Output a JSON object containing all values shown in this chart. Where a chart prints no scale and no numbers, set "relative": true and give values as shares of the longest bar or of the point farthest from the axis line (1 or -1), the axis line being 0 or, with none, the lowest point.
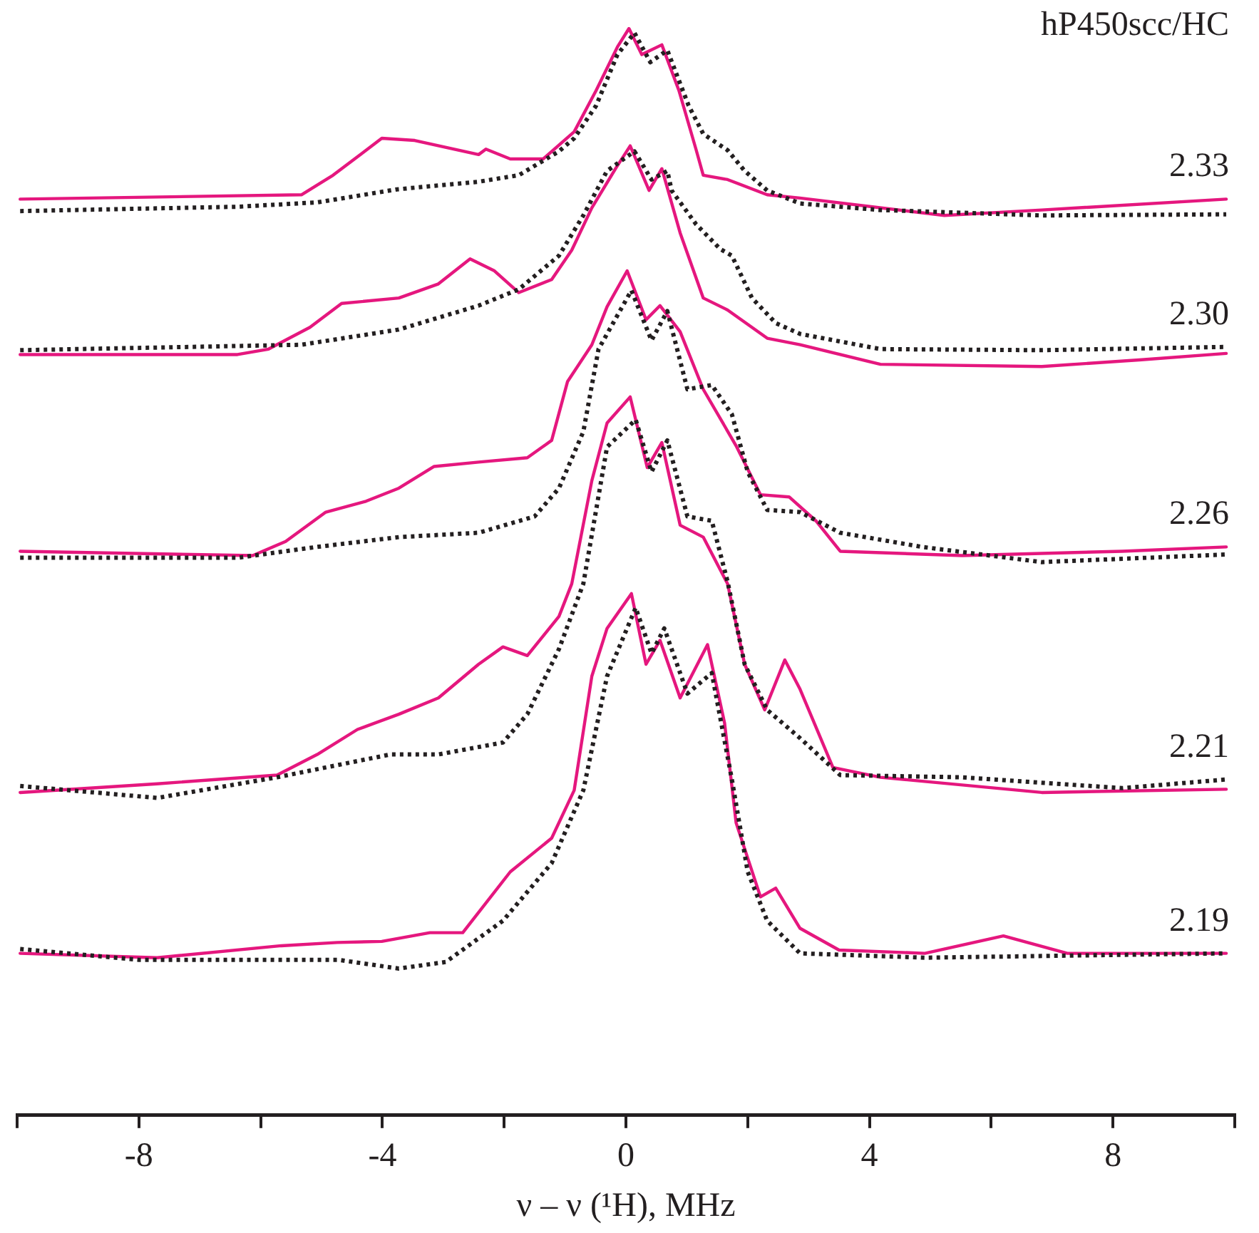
{
  "chart_data": {
    "type": "line",
    "relative": true,
    "xlabel": "ν – ν (¹H), MHz",
    "xlim": [
      -10,
      10
    ],
    "xticks": [
      {
        "value": -10,
        "label": null
      },
      -8,
      {
        "value": -6,
        "label": null
      },
      -4,
      {
        "value": -2,
        "label": null
      },
      0,
      {
        "value": 2,
        "label": null
      },
      4,
      {
        "value": 6,
        "label": null
      },
      8,
      {
        "value": 10,
        "label": null
      }
    ],
    "annotations": [
      "hP450scc/HC",
      "2.33",
      "2.30",
      "2.26",
      "2.21",
      "2.19"
    ],
    "series": [
      {
        "color": "#231f20",
        "line_style": "dotted",
        "x": [
          -9.95,
          -6.38,
          -5.07,
          -3.76,
          -2.42,
          -1.76,
          -1.1,
          -0.85,
          -0.49,
          -0.14,
          0.14,
          0.4,
          0.68,
          1.03,
          1.27,
          1.67,
          1.95,
          2.32,
          2.86,
          4.18,
          6.83,
          9.86
        ],
        "values": [
          0.832,
          0.836,
          0.84,
          0.852,
          0.859,
          0.865,
          0.887,
          0.899,
          0.929,
          0.976,
          0.996,
          0.969,
          0.98,
          0.929,
          0.903,
          0.888,
          0.869,
          0.851,
          0.839,
          0.833,
          0.828,
          0.829
        ]
      },
      {
        "color": "#e5177e",
        "line_style": "solid",
        "x": [
          -9.95,
          -5.33,
          -4.81,
          -4.01,
          -3.47,
          -2.42,
          -2.3,
          -1.9,
          -1.36,
          -0.85,
          -0.49,
          -0.14,
          0.05,
          0.26,
          0.59,
          0.87,
          1.15,
          1.27,
          1.67,
          2.32,
          2.86,
          5.23,
          6.83,
          9.86
        ],
        "values": [
          0.843,
          0.847,
          0.865,
          0.899,
          0.897,
          0.884,
          0.889,
          0.88,
          0.88,
          0.905,
          0.943,
          0.983,
          1.0,
          0.976,
          0.985,
          0.943,
          0.889,
          0.865,
          0.861,
          0.847,
          0.844,
          0.828,
          0.833,
          0.843
        ]
      },
      {
        "color": "#231f20",
        "line_style": "dotted",
        "x": [
          -9.95,
          -5.33,
          -3.73,
          -2.42,
          -1.76,
          -1.1,
          -0.7,
          -0.31,
          0.14,
          0.42,
          0.68,
          0.75,
          1.15,
          1.55,
          1.74,
          2.07,
          2.46,
          2.86,
          4.18,
          6.83,
          9.86
        ],
        "values": [
          0.704,
          0.709,
          0.723,
          0.745,
          0.76,
          0.791,
          0.828,
          0.869,
          0.887,
          0.861,
          0.869,
          0.851,
          0.82,
          0.797,
          0.791,
          0.752,
          0.729,
          0.719,
          0.705,
          0.704,
          0.707
        ]
      },
      {
        "color": "#e5177e",
        "line_style": "solid",
        "x": [
          -9.95,
          -6.38,
          -5.87,
          -5.19,
          -4.67,
          -3.73,
          -3.08,
          -2.56,
          -2.16,
          -1.76,
          -1.22,
          -0.89,
          -0.56,
          -0.16,
          0.07,
          0.38,
          0.59,
          0.89,
          1.27,
          1.67,
          2.32,
          2.86,
          4.18,
          6.83,
          8.43,
          9.86
        ],
        "values": [
          0.7,
          0.7,
          0.705,
          0.725,
          0.747,
          0.752,
          0.765,
          0.788,
          0.777,
          0.757,
          0.769,
          0.796,
          0.835,
          0.872,
          0.892,
          0.851,
          0.871,
          0.812,
          0.752,
          0.741,
          0.715,
          0.709,
          0.691,
          0.689,
          0.695,
          0.701
        ]
      },
      {
        "color": "#231f20",
        "line_style": "dotted",
        "x": [
          -9.95,
          -6.38,
          -5.07,
          -3.73,
          -2.42,
          -1.5,
          -1.1,
          -0.7,
          -0.45,
          0.09,
          0.42,
          0.68,
          1.01,
          1.41,
          1.74,
          2.0,
          2.32,
          2.86,
          3.52,
          4.86,
          6.83,
          9.86
        ],
        "values": [
          0.513,
          0.513,
          0.523,
          0.532,
          0.536,
          0.551,
          0.577,
          0.629,
          0.705,
          0.759,
          0.713,
          0.74,
          0.668,
          0.672,
          0.645,
          0.592,
          0.557,
          0.555,
          0.536,
          0.523,
          0.509,
          0.516
        ]
      },
      {
        "color": "#e5177e",
        "line_style": "solid",
        "x": [
          -9.95,
          -6.13,
          -5.59,
          -4.93,
          -4.27,
          -3.73,
          -3.15,
          -2.42,
          -1.62,
          -1.22,
          -0.96,
          -0.56,
          -0.31,
          0.02,
          0.33,
          0.56,
          0.89,
          1.27,
          1.81,
          2.21,
          2.68,
          3.12,
          3.52,
          5.52,
          8.15,
          9.86
        ],
        "values": [
          0.519,
          0.515,
          0.528,
          0.555,
          0.565,
          0.577,
          0.597,
          0.601,
          0.605,
          0.621,
          0.675,
          0.709,
          0.744,
          0.777,
          0.732,
          0.745,
          0.721,
          0.668,
          0.616,
          0.571,
          0.569,
          0.547,
          0.519,
          0.515,
          0.519,
          0.523
        ]
      },
      {
        "color": "#231f20",
        "line_style": "dotted",
        "x": [
          -9.95,
          -7.7,
          -5.73,
          -3.87,
          -3.08,
          -2.02,
          -1.62,
          -1.1,
          -0.7,
          -0.31,
          0.16,
          0.42,
          0.68,
          1.01,
          1.41,
          1.67,
          1.95,
          2.32,
          2.86,
          3.52,
          5.52,
          8.15,
          9.86
        ],
        "values": [
          0.303,
          0.292,
          0.311,
          0.332,
          0.332,
          0.343,
          0.369,
          0.429,
          0.489,
          0.615,
          0.64,
          0.592,
          0.621,
          0.551,
          0.547,
          0.491,
          0.415,
          0.373,
          0.347,
          0.313,
          0.311,
          0.301,
          0.309
        ]
      },
      {
        "color": "#e5177e",
        "line_style": "solid",
        "x": [
          -9.95,
          -7.7,
          -5.73,
          -5.07,
          -4.41,
          -3.73,
          -3.08,
          -2.42,
          -2.02,
          -1.62,
          -1.1,
          -0.89,
          -0.56,
          -0.31,
          0.07,
          0.35,
          0.59,
          0.89,
          1.27,
          1.67,
          1.95,
          2.28,
          2.61,
          2.86,
          3.4,
          4.18,
          6.83,
          9.86
        ],
        "values": [
          0.297,
          0.305,
          0.313,
          0.332,
          0.355,
          0.369,
          0.384,
          0.415,
          0.431,
          0.423,
          0.459,
          0.489,
          0.584,
          0.637,
          0.661,
          0.596,
          0.619,
          0.543,
          0.532,
          0.489,
          0.415,
          0.373,
          0.419,
          0.392,
          0.32,
          0.311,
          0.297,
          0.3
        ]
      },
      {
        "color": "#231f20",
        "line_style": "dotted",
        "x": [
          -9.95,
          -8.0,
          -4.72,
          -3.73,
          -2.96,
          -2.02,
          -1.22,
          -0.7,
          -0.31,
          0.16,
          0.42,
          0.63,
          1.01,
          1.41,
          1.74,
          2.0,
          2.32,
          2.86,
          4.91,
          9.86
        ],
        "values": [
          0.153,
          0.143,
          0.143,
          0.135,
          0.141,
          0.179,
          0.232,
          0.299,
          0.404,
          0.467,
          0.425,
          0.448,
          0.388,
          0.407,
          0.309,
          0.224,
          0.179,
          0.149,
          0.145,
          0.149
        ]
      },
      {
        "color": "#e5177e",
        "line_style": "solid",
        "x": [
          -9.95,
          -7.7,
          -5.66,
          -4.74,
          -4.01,
          -3.22,
          -2.68,
          -1.9,
          -1.22,
          -0.85,
          -0.56,
          -0.31,
          0.09,
          0.33,
          0.56,
          0.89,
          1.34,
          1.62,
          1.81,
          2.21,
          2.46,
          2.86,
          3.5,
          4.91,
          6.2,
          7.25,
          9.86
        ],
        "values": [
          0.149,
          0.145,
          0.156,
          0.159,
          0.16,
          0.168,
          0.168,
          0.224,
          0.255,
          0.299,
          0.404,
          0.448,
          0.48,
          0.415,
          0.437,
          0.384,
          0.433,
          0.361,
          0.269,
          0.201,
          0.209,
          0.172,
          0.152,
          0.149,
          0.165,
          0.149,
          0.149
        ]
      }
    ]
  }
}
